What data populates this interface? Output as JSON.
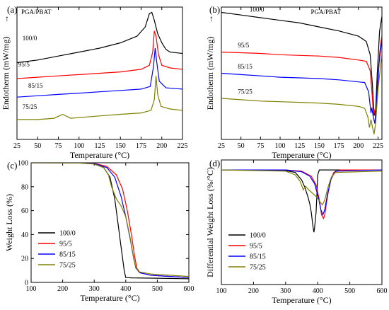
{
  "chart_data": [
    {
      "panel": "(a)",
      "type": "line",
      "title": "PGA/PBAT",
      "xlabel": "Temperature (°C)",
      "ylabel": "Endotherm (mW/mg)",
      "ylabel_arrow": "↑",
      "xlim": [
        25,
        225
      ],
      "xticks": [
        25,
        50,
        75,
        100,
        125,
        150,
        175,
        200,
        225
      ],
      "y_ticks_shown": false,
      "ylim": [
        0,
        10
      ],
      "series": [
        {
          "name": "100/0",
          "color": "#000000",
          "points": [
            [
              25,
              5.8
            ],
            [
              50,
              6.0
            ],
            [
              75,
              6.3
            ],
            [
              100,
              6.6
            ],
            [
              125,
              6.9
            ],
            [
              150,
              7.3
            ],
            [
              170,
              7.8
            ],
            [
              180,
              8.5
            ],
            [
              185,
              9.5
            ],
            [
              188,
              9.6
            ],
            [
              191,
              9.0
            ],
            [
              195,
              8.0
            ],
            [
              200,
              7.3
            ],
            [
              205,
              6.8
            ],
            [
              210,
              6.6
            ],
            [
              225,
              6.5
            ]
          ]
        },
        {
          "name": "95/5",
          "color": "#ff0000",
          "points": [
            [
              25,
              4.6
            ],
            [
              50,
              4.7
            ],
            [
              75,
              4.8
            ],
            [
              100,
              4.9
            ],
            [
              125,
              5.0
            ],
            [
              150,
              5.1
            ],
            [
              175,
              5.3
            ],
            [
              185,
              5.6
            ],
            [
              189,
              6.6
            ],
            [
              191,
              8.2
            ],
            [
              193,
              7.8
            ],
            [
              196,
              6.4
            ],
            [
              200,
              5.6
            ],
            [
              210,
              5.4
            ],
            [
              225,
              5.3
            ]
          ]
        },
        {
          "name": "85/15",
          "color": "#0000ff",
          "points": [
            [
              25,
              3.2
            ],
            [
              50,
              3.3
            ],
            [
              75,
              3.4
            ],
            [
              100,
              3.5
            ],
            [
              125,
              3.6
            ],
            [
              150,
              3.7
            ],
            [
              175,
              3.8
            ],
            [
              186,
              4.0
            ],
            [
              190,
              5.5
            ],
            [
              192,
              6.9
            ],
            [
              194,
              5.8
            ],
            [
              197,
              4.4
            ],
            [
              205,
              3.9
            ],
            [
              225,
              3.8
            ]
          ]
        },
        {
          "name": "75/25",
          "color": "#808000",
          "points": [
            [
              25,
              1.5
            ],
            [
              50,
              1.5
            ],
            [
              70,
              1.6
            ],
            [
              80,
              1.9
            ],
            [
              90,
              1.6
            ],
            [
              110,
              1.7
            ],
            [
              130,
              1.8
            ],
            [
              150,
              1.9
            ],
            [
              175,
              2.0
            ],
            [
              187,
              2.2
            ],
            [
              191,
              3.0
            ],
            [
              193,
              4.8
            ],
            [
              195,
              3.4
            ],
            [
              199,
              2.5
            ],
            [
              210,
              2.3
            ],
            [
              225,
              2.2
            ]
          ]
        }
      ]
    },
    {
      "panel": "(b)",
      "type": "line",
      "title": "PGA/PBAT",
      "xlabel": "Temperature (°C)",
      "ylabel": "Endotherm (mW/mg)",
      "ylabel_arrow": "↑",
      "xlim": [
        25,
        230
      ],
      "xticks": [
        25,
        50,
        75,
        100,
        125,
        150,
        175,
        200,
        225
      ],
      "y_ticks_shown": false,
      "ylim": [
        0,
        10
      ],
      "series": [
        {
          "name": "100/0",
          "color": "#000000",
          "points": [
            [
              25,
              9.6
            ],
            [
              50,
              9.4
            ],
            [
              75,
              9.2
            ],
            [
              100,
              9.0
            ],
            [
              125,
              8.8
            ],
            [
              150,
              8.5
            ],
            [
              175,
              8.2
            ],
            [
              200,
              7.8
            ],
            [
              210,
              7.4
            ],
            [
              215,
              6.4
            ],
            [
              218,
              4.0
            ],
            [
              220,
              1.8
            ],
            [
              222,
              2.2
            ],
            [
              224,
              5.0
            ],
            [
              227,
              8.2
            ],
            [
              230,
              9.3
            ]
          ]
        },
        {
          "name": "95/5",
          "color": "#ff0000",
          "points": [
            [
              25,
              6.6
            ],
            [
              50,
              6.55
            ],
            [
              75,
              6.5
            ],
            [
              100,
              6.4
            ],
            [
              125,
              6.35
            ],
            [
              150,
              6.3
            ],
            [
              175,
              6.2
            ],
            [
              200,
              6.0
            ],
            [
              210,
              5.9
            ],
            [
              215,
              5.2
            ],
            [
              218,
              3.0
            ],
            [
              219,
              1.9
            ],
            [
              220,
              2.3
            ],
            [
              222,
              1.6
            ],
            [
              224,
              3.2
            ],
            [
              227,
              6.5
            ],
            [
              230,
              7.9
            ]
          ]
        },
        {
          "name": "85/15",
          "color": "#0000ff",
          "points": [
            [
              25,
              5.0
            ],
            [
              50,
              4.9
            ],
            [
              75,
              4.8
            ],
            [
              100,
              4.7
            ],
            [
              125,
              4.65
            ],
            [
              150,
              4.6
            ],
            [
              175,
              4.5
            ],
            [
              200,
              4.35
            ],
            [
              208,
              4.3
            ],
            [
              213,
              3.6
            ],
            [
              216,
              2.0
            ],
            [
              217,
              2.4
            ],
            [
              219,
              1.7
            ],
            [
              221,
              1.2
            ],
            [
              223,
              2.8
            ],
            [
              226,
              5.6
            ],
            [
              230,
              7.6
            ]
          ]
        },
        {
          "name": "75/25",
          "color": "#808000",
          "points": [
            [
              25,
              3.1
            ],
            [
              50,
              3.0
            ],
            [
              75,
              2.9
            ],
            [
              100,
              2.85
            ],
            [
              125,
              2.8
            ],
            [
              150,
              2.75
            ],
            [
              175,
              2.65
            ],
            [
              200,
              2.5
            ],
            [
              208,
              2.35
            ],
            [
              212,
              1.7
            ],
            [
              214,
              0.9
            ],
            [
              216,
              1.5
            ],
            [
              218,
              0.9
            ],
            [
              220,
              0.4
            ],
            [
              222,
              1.2
            ],
            [
              225,
              3.8
            ],
            [
              230,
              6.5
            ]
          ]
        }
      ]
    },
    {
      "panel": "(c)",
      "type": "line",
      "title": "",
      "xlabel": "Temperature (°C)",
      "ylabel": "Weight Loss (%)",
      "xlim": [
        100,
        600
      ],
      "ylim": [
        0,
        100
      ],
      "xticks": [
        100,
        200,
        300,
        400,
        500,
        600
      ],
      "yticks": [
        0,
        20,
        40,
        60,
        80,
        100
      ],
      "legend_position": "bottom-left",
      "series": [
        {
          "name": "100/0",
          "color": "#000000",
          "points": [
            [
              100,
              100
            ],
            [
              250,
              99.8
            ],
            [
              300,
              99
            ],
            [
              330,
              96
            ],
            [
              350,
              88
            ],
            [
              365,
              70
            ],
            [
              375,
              50
            ],
            [
              385,
              30
            ],
            [
              395,
              10
            ],
            [
              400,
              4
            ],
            [
              420,
              3.8
            ],
            [
              500,
              3.5
            ],
            [
              600,
              3
            ]
          ]
        },
        {
          "name": "95/5",
          "color": "#ff0000",
          "points": [
            [
              100,
              100
            ],
            [
              250,
              99.8
            ],
            [
              300,
              99.5
            ],
            [
              340,
              97
            ],
            [
              370,
              90
            ],
            [
              390,
              78
            ],
            [
              405,
              60
            ],
            [
              418,
              40
            ],
            [
              428,
              22
            ],
            [
              435,
              12
            ],
            [
              445,
              8
            ],
            [
              480,
              6
            ],
            [
              540,
              5
            ],
            [
              600,
              4
            ]
          ]
        },
        {
          "name": "85/15",
          "color": "#0000ff",
          "points": [
            [
              100,
              100
            ],
            [
              250,
              99.8
            ],
            [
              300,
              99.4
            ],
            [
              340,
              96
            ],
            [
              365,
              88
            ],
            [
              385,
              72
            ],
            [
              400,
              55
            ],
            [
              415,
              35
            ],
            [
              425,
              20
            ],
            [
              432,
              12
            ],
            [
              445,
              8
            ],
            [
              480,
              6
            ],
            [
              540,
              5
            ],
            [
              600,
              4
            ]
          ]
        },
        {
          "name": "75/25",
          "color": "#808000",
          "points": [
            [
              100,
              100
            ],
            [
              250,
              99.8
            ],
            [
              300,
              99
            ],
            [
              330,
              96
            ],
            [
              345,
              90
            ],
            [
              355,
              80
            ],
            [
              370,
              70
            ],
            [
              385,
              64
            ],
            [
              400,
              55
            ],
            [
              412,
              40
            ],
            [
              422,
              25
            ],
            [
              430,
              14
            ],
            [
              440,
              9
            ],
            [
              480,
              7
            ],
            [
              540,
              6
            ],
            [
              600,
              5
            ]
          ]
        }
      ]
    },
    {
      "panel": "(d)",
      "type": "line",
      "title": "",
      "xlabel": "Temperature (°C)",
      "ylabel": "Differential Weight Loss (%/°C)",
      "xlim": [
        100,
        600
      ],
      "xticks": [
        100,
        200,
        300,
        400,
        500,
        600
      ],
      "y_ticks_shown": false,
      "ylim": [
        0,
        10
      ],
      "legend_position": "bottom-left",
      "series": [
        {
          "name": "100/0",
          "color": "#000000",
          "points": [
            [
              100,
              9.2
            ],
            [
              300,
              9.15
            ],
            [
              330,
              9.0
            ],
            [
              350,
              8.4
            ],
            [
              360,
              7.8
            ],
            [
              370,
              7.0
            ],
            [
              375,
              6.5
            ],
            [
              380,
              5.8
            ],
            [
              385,
              4.7
            ],
            [
              388,
              4.2
            ],
            [
              390,
              4.5
            ],
            [
              395,
              5.8
            ],
            [
              398,
              7.5
            ],
            [
              400,
              8.8
            ],
            [
              405,
              9.2
            ],
            [
              450,
              9.2
            ],
            [
              600,
              9.2
            ]
          ]
        },
        {
          "name": "95/5",
          "color": "#ff0000",
          "points": [
            [
              100,
              9.2
            ],
            [
              300,
              9.2
            ],
            [
              350,
              9.1
            ],
            [
              380,
              8.7
            ],
            [
              395,
              8.0
            ],
            [
              405,
              6.8
            ],
            [
              412,
              5.6
            ],
            [
              418,
              5.3
            ],
            [
              422,
              5.6
            ],
            [
              430,
              7.0
            ],
            [
              440,
              8.4
            ],
            [
              450,
              9.0
            ],
            [
              470,
              9.2
            ],
            [
              600,
              9.2
            ]
          ]
        },
        {
          "name": "85/15",
          "color": "#0000ff",
          "points": [
            [
              100,
              9.2
            ],
            [
              300,
              9.2
            ],
            [
              350,
              9.05
            ],
            [
              375,
              8.7
            ],
            [
              390,
              8.1
            ],
            [
              402,
              7.0
            ],
            [
              410,
              6.0
            ],
            [
              416,
              5.6
            ],
            [
              422,
              6.0
            ],
            [
              430,
              7.2
            ],
            [
              442,
              8.5
            ],
            [
              455,
              9.1
            ],
            [
              600,
              9.2
            ]
          ]
        },
        {
          "name": "75/25",
          "color": "#808000",
          "points": [
            [
              100,
              9.2
            ],
            [
              300,
              9.1
            ],
            [
              330,
              8.8
            ],
            [
              345,
              8.3
            ],
            [
              355,
              7.6
            ],
            [
              362,
              7.9
            ],
            [
              372,
              7.6
            ],
            [
              385,
              7.3
            ],
            [
              398,
              7.0
            ],
            [
              408,
              6.6
            ],
            [
              415,
              6.4
            ],
            [
              422,
              6.8
            ],
            [
              432,
              7.8
            ],
            [
              442,
              8.6
            ],
            [
              455,
              9.0
            ],
            [
              600,
              9.1
            ]
          ]
        }
      ]
    }
  ]
}
